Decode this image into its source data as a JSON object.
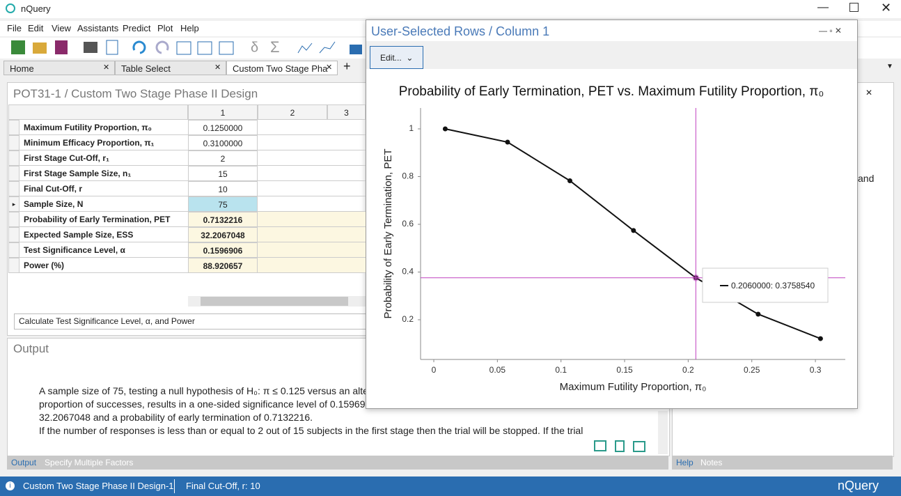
{
  "app": {
    "title": "nQuery"
  },
  "menu": [
    "File",
    "Edit",
    "View",
    "Assistants",
    "Predict",
    "Plot",
    "Help"
  ],
  "tabs": [
    "Home",
    "Table Select",
    "Custom Two Stage Pha"
  ],
  "design": {
    "title": "POT31-1 / Custom Two Stage Phase II Design",
    "columns": [
      "1",
      "2",
      "3"
    ],
    "rows": [
      [
        "Maximum Futility Proportion, π₀",
        "0.1250000"
      ],
      [
        "Minimum Efficacy Proportion, π₁",
        "0.3100000"
      ],
      [
        "First Stage Cut-Off, r₁",
        "2"
      ],
      [
        "First Stage Sample Size, n₁",
        "15"
      ],
      [
        "Final Cut-Off, r",
        "10"
      ],
      [
        "Sample Size, N",
        "75"
      ],
      [
        "Probability of Early Termination, PET",
        "0.7132216"
      ],
      [
        "Expected Sample Size, ESS",
        "32.2067048"
      ],
      [
        "Test Significance Level, α",
        "0.1596906"
      ],
      [
        "Power (%)",
        "88.920657"
      ]
    ]
  },
  "calc": "Calculate Test Significance Level, α, and Power",
  "output": {
    "title": "Output",
    "lines": [
      "A sample size of 75, testing a null hypothesis of H₀: π  ≤ 0.125 versus an alte",
      "proportion of successes, results in a one-sided significance level of 0.15969",
      "32.2067048 and a probability of early termination of 0.7132216.",
      "If the number of responses is less than or equal to 2 out of 15 subjects in the first stage then the trial will be stopped. If the trial"
    ],
    "tabs": [
      "Output",
      "Specify Multiple Factors"
    ]
  },
  "help": {
    "fragments": [
      "and"
    ],
    "tabs": [
      "Help",
      "Notes"
    ]
  },
  "status": {
    "items": [
      "Custom Two Stage Phase II Design-1",
      "Final Cut-Off, r: 10"
    ],
    "brand": "nQuery"
  },
  "popup": {
    "title": "User-Selected Rows / Column 1",
    "button": "Edit...",
    "chart": {
      "type": "line",
      "title": "Probability of Early Termination, PET vs. Maximum Futility Proportion, π₀",
      "x_label": "Maximum Futility Proportion, π₀",
      "y_label": "Probability of Early Termination, PET",
      "x": [
        0.009,
        0.058,
        0.107,
        0.157,
        0.206,
        0.255,
        0.304
      ],
      "values": [
        1.0,
        0.9445,
        0.7825,
        0.574,
        0.375854,
        0.2234,
        0.121
      ],
      "color": "#111111",
      "xlim": [
        -0.0104,
        0.3235
      ],
      "ylim": [
        0.0336,
        1.0876
      ],
      "xticks": [
        0,
        0.05,
        0.1,
        0.15,
        0.2,
        0.25,
        0.3
      ],
      "yticks": [
        0.2,
        0.4,
        0.6,
        0.8,
        1
      ],
      "crosshair": {
        "x": 0.206,
        "y": 0.375854,
        "label": "0.2060000: 0.3758540",
        "color": "#c040c0"
      }
    }
  }
}
